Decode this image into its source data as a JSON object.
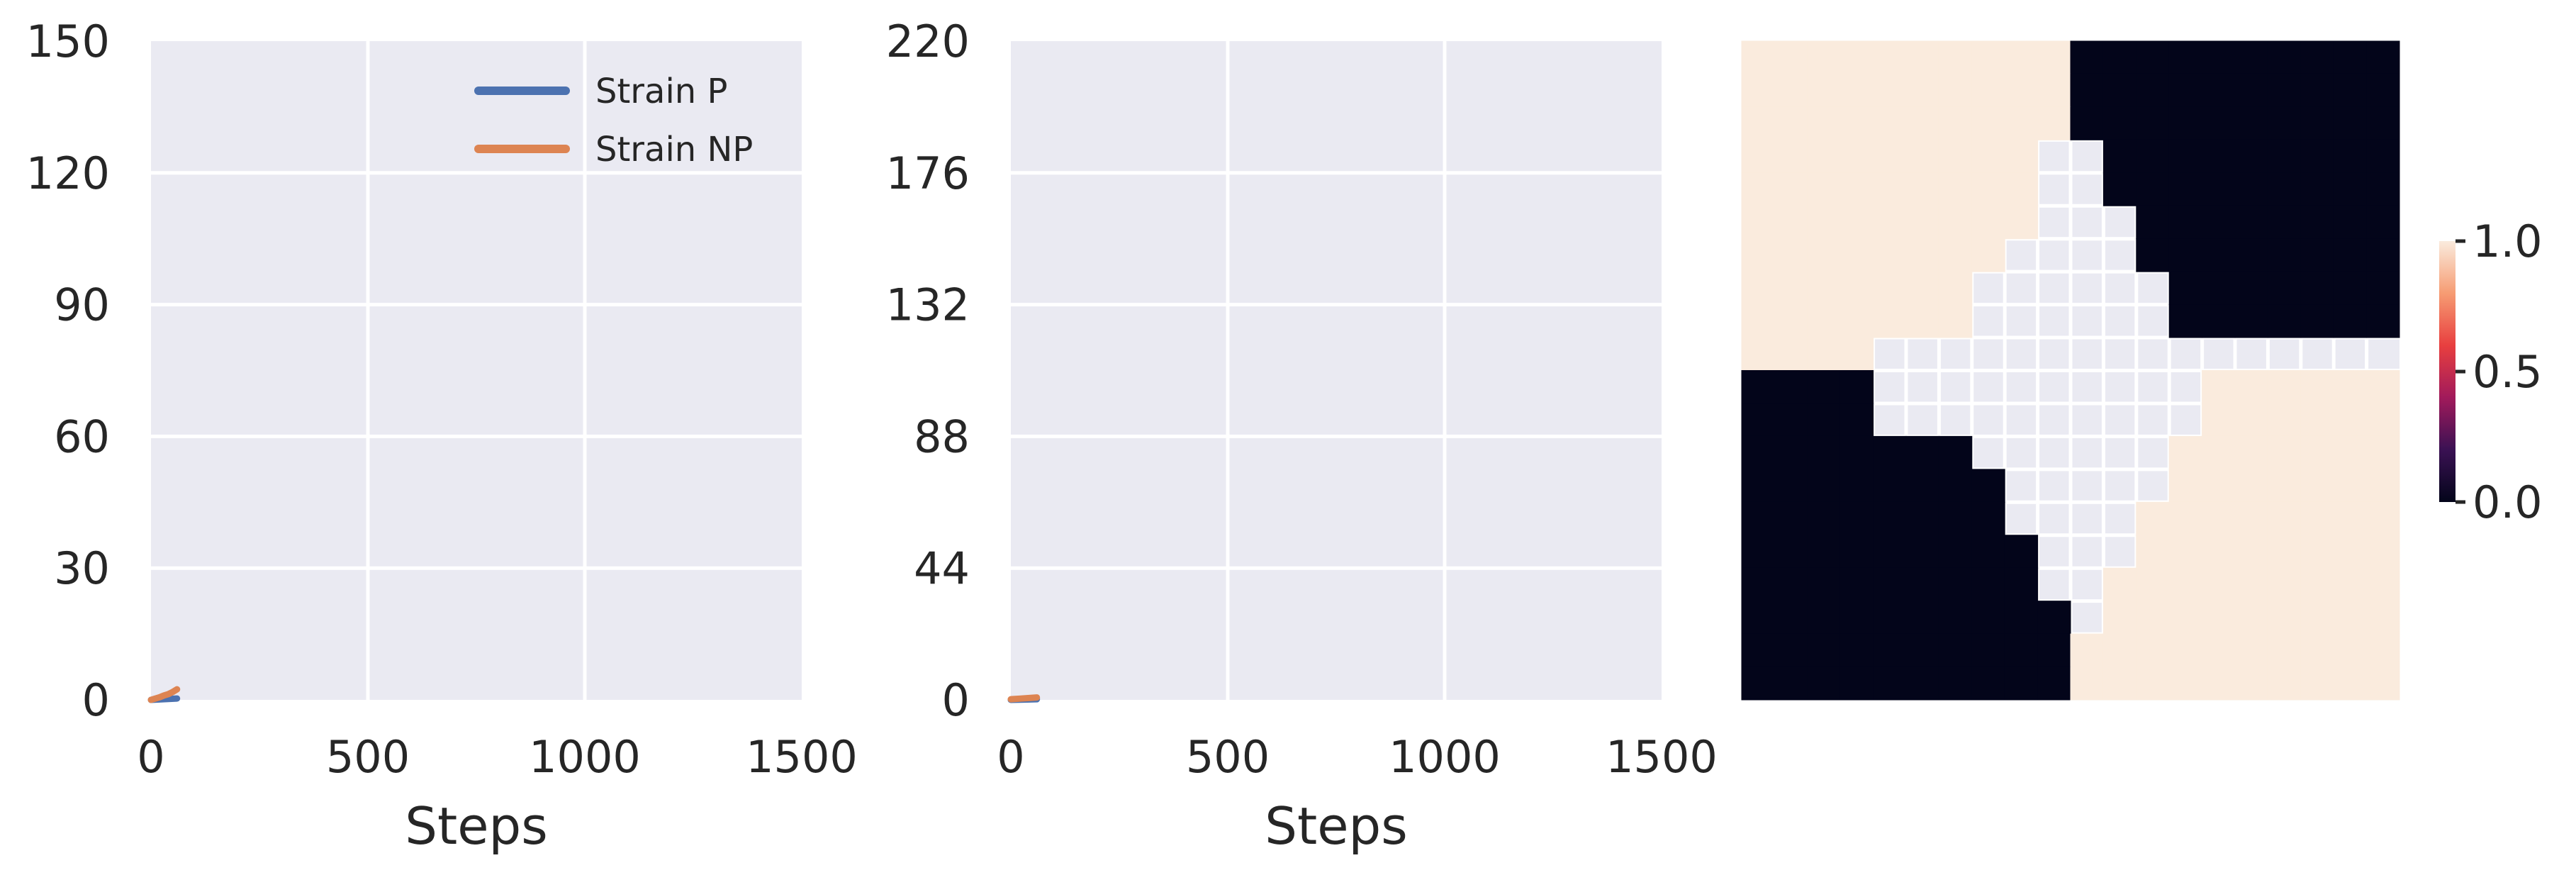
{
  "colors": {
    "axes_bg": "#eaeaf2",
    "grid": "#ffffff",
    "strain_p": "#4c72b0",
    "strain_np": "#dd8452",
    "heat_low": "#03051a",
    "heat_high": "#faebdd"
  },
  "chart_data": [
    {
      "type": "line",
      "xlabel": "Steps",
      "ylabel": "",
      "xlim": [
        0,
        1500
      ],
      "ylim": [
        0,
        150
      ],
      "xticks": [
        "0",
        "500",
        "1000",
        "1500"
      ],
      "yticks": [
        "0",
        "30",
        "60",
        "90",
        "120",
        "150"
      ],
      "xtick_values": [
        0,
        500,
        1000,
        1500
      ],
      "ytick_values": [
        0,
        30,
        60,
        90,
        120,
        150
      ],
      "grid": true,
      "legend": "top-right",
      "series": [
        {
          "name": "Strain P",
          "color": "#4c72b0",
          "x": [
            0,
            20,
            40,
            60
          ],
          "y": [
            0,
            0.1,
            0.2,
            0.3
          ]
        },
        {
          "name": "Strain NP",
          "color": "#dd8452",
          "x": [
            0,
            10,
            20,
            30,
            40,
            50,
            60
          ],
          "y": [
            0,
            0.3,
            0.6,
            1.0,
            1.3,
            1.8,
            2.4
          ]
        }
      ]
    },
    {
      "type": "line",
      "xlabel": "Steps",
      "ylabel": "",
      "xlim": [
        0,
        1500
      ],
      "ylim": [
        0,
        220
      ],
      "xticks": [
        "0",
        "500",
        "1000",
        "1500"
      ],
      "yticks": [
        "0",
        "44",
        "88",
        "132",
        "176",
        "220"
      ],
      "xtick_values": [
        0,
        500,
        1000,
        1500
      ],
      "ytick_values": [
        0,
        44,
        88,
        132,
        176,
        220
      ],
      "grid": true,
      "series": [
        {
          "color": "#4c72b0",
          "x": [
            0,
            30,
            60
          ],
          "y": [
            0,
            0.1,
            0.2
          ]
        },
        {
          "color": "#dd8452",
          "x": [
            0,
            20,
            40,
            60
          ],
          "y": [
            0.2,
            0.4,
            0.6,
            0.8
          ]
        }
      ]
    },
    {
      "type": "heatmap",
      "grid_size": 20,
      "vmin": 0.0,
      "vmax": 1.0,
      "colorbar_ticks": [
        "0.0",
        "0.5",
        "1.0"
      ],
      "colorbar_tick_values": [
        0.0,
        0.5,
        1.0
      ],
      "colors": [
        "#03051a",
        "#3a1153",
        "#a11a5b",
        "#e83f3f",
        "#f69c73",
        "#faebdd"
      ],
      "empty_value": "none",
      "rows": [
        "11111111110000000000",
        "11111111110000000000",
        "11111111110000000000",
        "111111111..000000000",
        "111111111..000000000",
        "111111111...00000000",
        "11111111....00000000",
        "1111111......0000000",
        "1111111......0000000",
        "1111................",
        "0000..........111111",
        "0000..........111111",
        "0000000......1111111",
        "00000000.....1111111",
        "00000000....11111111",
        "000000000...11111111",
        "000000000..111111111",
        "0000000000.111111111",
        "00000000001111111111",
        "00000000001111111111"
      ]
    }
  ]
}
